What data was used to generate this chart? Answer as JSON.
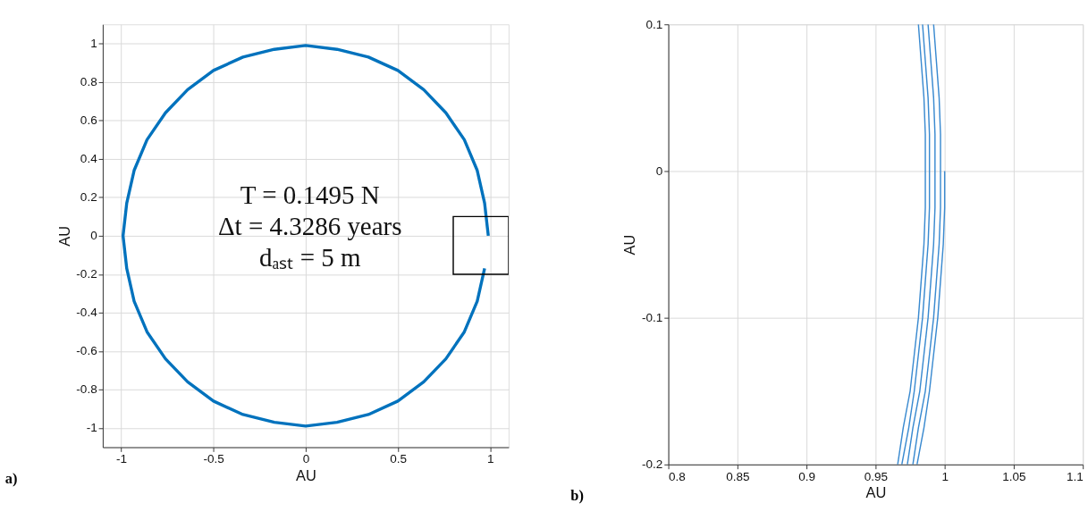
{
  "chart_data": [
    {
      "type": "line",
      "title": "a)",
      "xlabel": "AU",
      "ylabel": "AU",
      "xlim": [
        -1.1,
        1.1
      ],
      "ylim": [
        -1.1,
        1.1
      ],
      "xticks": [
        -1,
        -0.5,
        0,
        0.5,
        1
      ],
      "yticks": [
        -1,
        -0.8,
        -0.6,
        -0.4,
        -0.2,
        0,
        0.2,
        0.4,
        0.6,
        0.8,
        1
      ],
      "grid": true,
      "line_style": "solid",
      "annotations": [
        "T = 0.1495 N",
        "Δt = 4.3286 years",
        "dₐₛₜ = 5 m"
      ],
      "series": [
        {
          "color": "#0072bd",
          "x": [
            0.99,
            0.97,
            0.93,
            0.86,
            0.76,
            0.64,
            0.5,
            0.34,
            0.17,
            0,
            -0.17,
            -0.34,
            -0.5,
            -0.64,
            -0.76,
            -0.86,
            -0.93,
            -0.97,
            -0.99,
            -0.97,
            -0.93,
            -0.86,
            -0.76,
            -0.64,
            -0.5,
            -0.34,
            -0.17,
            0,
            0.17,
            0.34,
            0.5,
            0.64,
            0.76,
            0.86,
            0.93,
            0.97
          ],
          "values": [
            0,
            0.17,
            0.34,
            0.5,
            0.64,
            0.76,
            0.86,
            0.93,
            0.97,
            0.99,
            0.97,
            0.93,
            0.86,
            0.76,
            0.64,
            0.5,
            0.34,
            0.17,
            0,
            -0.17,
            -0.34,
            -0.5,
            -0.64,
            -0.76,
            -0.86,
            -0.93,
            -0.97,
            -0.99,
            -0.97,
            -0.93,
            -0.86,
            -0.76,
            -0.64,
            -0.5,
            -0.34,
            -0.17
          ]
        }
      ]
    },
    {
      "type": "line",
      "title": "b)",
      "xlabel": "AU",
      "ylabel": "AU",
      "xlim": [
        0.8,
        1.1
      ],
      "ylim": [
        -0.2,
        0.1
      ],
      "xticks": [
        0.8,
        0.85,
        0.9,
        0.95,
        1,
        1.05,
        1.1
      ],
      "yticks": [
        -0.2,
        -0.1,
        0,
        0.1
      ],
      "grid": true,
      "line_style": "solid",
      "series": [
        {
          "color": "#3a8ad0",
          "x": [
            0.981,
            0.983,
            0.985,
            0.986,
            0.986,
            0.986,
            0.985,
            0.983,
            0.981,
            0.978,
            0.975,
            0.97,
            0.966
          ],
          "values": [
            0.1,
            0.075,
            0.05,
            0.025,
            0,
            -0.025,
            -0.05,
            -0.075,
            -0.1,
            -0.125,
            -0.15,
            -0.175,
            -0.2
          ]
        },
        {
          "color": "#3a8ad0",
          "x": [
            0.984,
            0.986,
            0.988,
            0.989,
            0.989,
            0.989,
            0.988,
            0.986,
            0.984,
            0.981,
            0.978,
            0.974,
            0.969
          ],
          "values": [
            0.1,
            0.075,
            0.05,
            0.025,
            0,
            -0.025,
            -0.05,
            -0.075,
            -0.1,
            -0.125,
            -0.15,
            -0.175,
            -0.2
          ]
        },
        {
          "color": "#3a8ad0",
          "x": [
            0.988,
            0.99,
            0.992,
            0.993,
            0.993,
            0.993,
            0.992,
            0.99,
            0.988,
            0.985,
            0.982,
            0.977,
            0.973
          ],
          "values": [
            0.1,
            0.075,
            0.05,
            0.025,
            0,
            -0.025,
            -0.05,
            -0.075,
            -0.1,
            -0.125,
            -0.15,
            -0.175,
            -0.2
          ]
        },
        {
          "color": "#3a8ad0",
          "x": [
            0.992,
            0.994,
            0.996,
            0.997,
            0.997,
            0.997,
            0.996,
            0.994,
            0.992,
            0.989,
            0.986,
            0.981,
            0.977
          ],
          "values": [
            0.1,
            0.075,
            0.05,
            0.025,
            0,
            -0.025,
            -0.05,
            -0.075,
            -0.1,
            -0.125,
            -0.15,
            -0.175,
            -0.2
          ]
        },
        {
          "color": "#3a8ad0",
          "x": [
            1.0,
            1.0,
            0.999,
            0.997,
            0.995,
            0.992,
            0.989,
            0.985,
            0.98
          ],
          "values": [
            0,
            -0.025,
            -0.05,
            -0.075,
            -0.1,
            -0.125,
            -0.15,
            -0.175,
            -0.2
          ]
        }
      ]
    }
  ]
}
